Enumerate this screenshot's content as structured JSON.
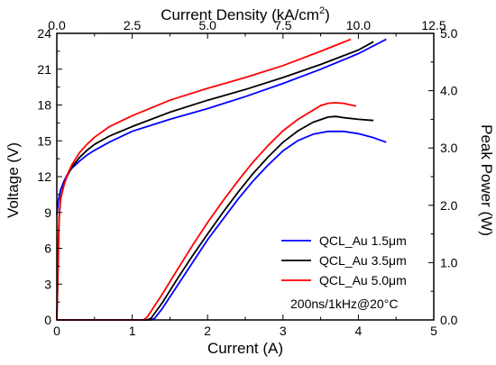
{
  "chart_data": {
    "type": "line",
    "axes": {
      "x_bottom": {
        "label": "Current (A)",
        "range": [
          0,
          5
        ],
        "ticks": [
          0,
          1,
          2,
          3,
          4,
          5
        ],
        "tick_labels": [
          "0",
          "1",
          "2",
          "3",
          "4",
          "5"
        ]
      },
      "x_top": {
        "label": "Current Density (kA/cm",
        "label_sup": "2",
        "label_close": ")",
        "range": [
          0,
          12.5
        ],
        "ticks": [
          0,
          2.5,
          5,
          7.5,
          10,
          12.5
        ],
        "tick_labels": [
          "0.0",
          "2.5",
          "5.0",
          "7.5",
          "10.0",
          "12.5"
        ]
      },
      "y_left": {
        "label": "Voltage (V)",
        "range": [
          0,
          24
        ],
        "ticks": [
          0,
          3,
          6,
          9,
          12,
          15,
          18,
          21,
          24
        ],
        "tick_labels": [
          "0",
          "3",
          "6",
          "9",
          "12",
          "15",
          "18",
          "21",
          "24"
        ]
      },
      "y_right": {
        "label": "Peak Power (W)",
        "range": [
          0,
          5
        ],
        "ticks": [
          0,
          1,
          2,
          3,
          4,
          5
        ],
        "tick_labels": [
          "0.0",
          "1.0",
          "2.0",
          "3.0",
          "4.0",
          "5.0"
        ]
      }
    },
    "series": [
      {
        "name": "QCL_Au 1.5μm",
        "color": "#0000ff",
        "voltage": {
          "x": [
            0.0,
            0.02,
            0.05,
            0.1,
            0.15,
            0.2,
            0.3,
            0.4,
            0.5,
            0.7,
            1.0,
            1.2,
            1.5,
            2.0,
            2.5,
            3.0,
            3.5,
            4.0,
            4.37
          ],
          "y": [
            8.8,
            10.0,
            10.9,
            11.7,
            12.3,
            12.7,
            13.3,
            13.8,
            14.2,
            14.9,
            15.8,
            16.2,
            16.8,
            17.7,
            18.7,
            19.8,
            21.0,
            22.3,
            23.5
          ]
        },
        "power": {
          "x": [
            0.0,
            1.25,
            1.3,
            1.4,
            1.6,
            1.8,
            2.0,
            2.2,
            2.4,
            2.6,
            2.8,
            3.0,
            3.2,
            3.4,
            3.6,
            3.8,
            4.0,
            4.2,
            4.37
          ],
          "y": [
            0.0,
            0.0,
            0.03,
            0.2,
            0.6,
            1.0,
            1.4,
            1.75,
            2.1,
            2.42,
            2.7,
            2.95,
            3.13,
            3.24,
            3.29,
            3.29,
            3.25,
            3.18,
            3.1
          ]
        }
      },
      {
        "name": "QCL_Au 3.5μm",
        "color": "#000000",
        "voltage": {
          "x": [
            0.0,
            0.015,
            0.03,
            0.05,
            0.08,
            0.1,
            0.15,
            0.2,
            0.3,
            0.4,
            0.5,
            0.7,
            1.0,
            1.5,
            2.0,
            2.5,
            3.0,
            3.5,
            4.0,
            4.2
          ],
          "y": [
            0.0,
            4.0,
            8.5,
            10.2,
            11.0,
            11.5,
            12.2,
            12.8,
            13.6,
            14.2,
            14.7,
            15.4,
            16.2,
            17.4,
            18.4,
            19.3,
            20.3,
            21.4,
            22.6,
            23.3
          ]
        },
        "power": {
          "x": [
            0.0,
            1.2,
            1.25,
            1.4,
            1.6,
            1.8,
            2.0,
            2.2,
            2.4,
            2.6,
            2.8,
            3.0,
            3.2,
            3.4,
            3.6,
            3.7,
            3.8,
            4.0,
            4.2
          ],
          "y": [
            0.0,
            0.0,
            0.03,
            0.3,
            0.72,
            1.12,
            1.5,
            1.87,
            2.22,
            2.55,
            2.84,
            3.1,
            3.3,
            3.45,
            3.54,
            3.55,
            3.53,
            3.5,
            3.48
          ]
        }
      },
      {
        "name": "QCL_Au 5.0μm",
        "color": "#ff0000",
        "voltage": {
          "x": [
            0.0,
            0.01,
            0.02,
            0.04,
            0.06,
            0.1,
            0.15,
            0.2,
            0.3,
            0.4,
            0.5,
            0.7,
            1.0,
            1.5,
            2.0,
            2.5,
            3.0,
            3.5,
            3.9
          ],
          "y": [
            0.0,
            3.0,
            7.0,
            9.5,
            10.4,
            11.4,
            12.3,
            13.0,
            14.0,
            14.7,
            15.3,
            16.2,
            17.1,
            18.4,
            19.4,
            20.3,
            21.3,
            22.5,
            23.5
          ]
        },
        "power": {
          "x": [
            0.0,
            1.15,
            1.2,
            1.4,
            1.6,
            1.8,
            2.0,
            2.2,
            2.4,
            2.6,
            2.8,
            3.0,
            3.2,
            3.4,
            3.5,
            3.6,
            3.7,
            3.8,
            3.97
          ],
          "y": [
            0.0,
            0.0,
            0.05,
            0.45,
            0.88,
            1.3,
            1.7,
            2.07,
            2.42,
            2.75,
            3.04,
            3.3,
            3.5,
            3.66,
            3.74,
            3.78,
            3.79,
            3.78,
            3.73
          ]
        }
      }
    ],
    "annotation": "200ns/1kHz@20°C",
    "legend": {
      "placement": "bottom-right"
    },
    "grid": false
  }
}
